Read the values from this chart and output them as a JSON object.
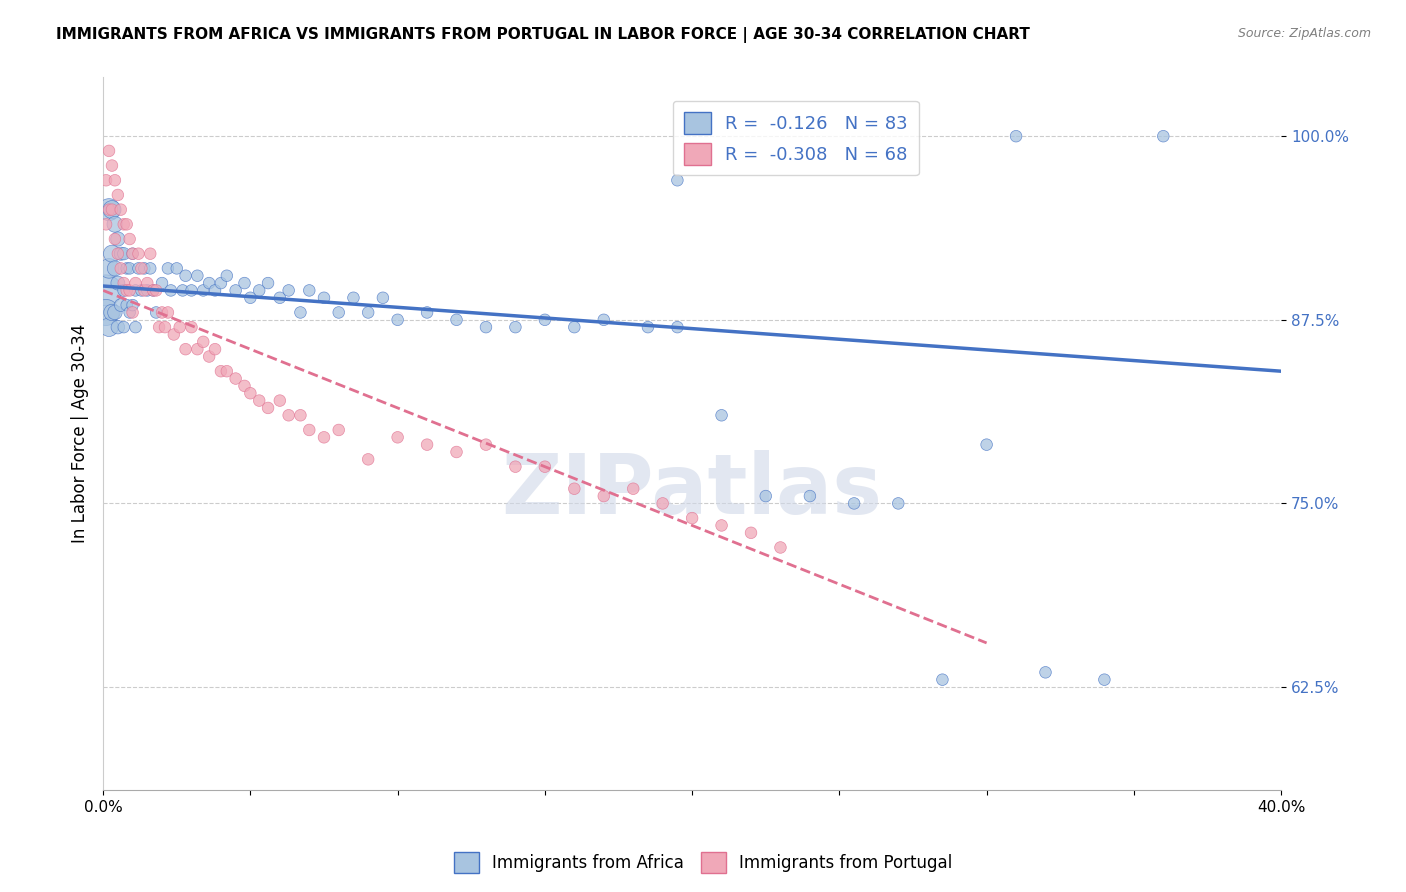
{
  "title": "IMMIGRANTS FROM AFRICA VS IMMIGRANTS FROM PORTUGAL IN LABOR FORCE | AGE 30-34 CORRELATION CHART",
  "source": "Source: ZipAtlas.com",
  "ylabel": "In Labor Force | Age 30-34",
  "xlim": [
    0.0,
    0.4
  ],
  "ylim": [
    0.555,
    1.04
  ],
  "yticks": [
    0.625,
    0.75,
    0.875,
    1.0
  ],
  "ytick_labels": [
    "62.5%",
    "75.0%",
    "87.5%",
    "100.0%"
  ],
  "xticks": [
    0.0,
    0.05,
    0.1,
    0.15,
    0.2,
    0.25,
    0.3,
    0.35,
    0.4
  ],
  "xtick_labels": [
    "0.0%",
    "",
    "",
    "",
    "",
    "",
    "",
    "",
    "40.0%"
  ],
  "legend_r_africa": "-0.126",
  "legend_n_africa": "83",
  "legend_r_portugal": "-0.308",
  "legend_n_portugal": "68",
  "color_africa": "#a8c4e0",
  "color_portugal": "#f0a8b8",
  "trend_africa_color": "#4472c4",
  "trend_portugal_color": "#e07090",
  "watermark": "ZIPatlas",
  "trend_africa_x0": 0.0,
  "trend_africa_y0": 0.898,
  "trend_africa_x1": 0.4,
  "trend_africa_y1": 0.84,
  "trend_portugal_x0": 0.0,
  "trend_portugal_y0": 0.895,
  "trend_portugal_x1": 0.3,
  "trend_portugal_y1": 0.655,
  "africa_x": [
    0.001,
    0.001,
    0.002,
    0.002,
    0.002,
    0.003,
    0.003,
    0.003,
    0.004,
    0.004,
    0.004,
    0.005,
    0.005,
    0.005,
    0.006,
    0.006,
    0.007,
    0.007,
    0.007,
    0.008,
    0.008,
    0.009,
    0.009,
    0.01,
    0.01,
    0.011,
    0.011,
    0.012,
    0.013,
    0.014,
    0.015,
    0.016,
    0.017,
    0.018,
    0.02,
    0.022,
    0.023,
    0.025,
    0.027,
    0.028,
    0.03,
    0.032,
    0.034,
    0.036,
    0.038,
    0.04,
    0.042,
    0.045,
    0.048,
    0.05,
    0.053,
    0.056,
    0.06,
    0.063,
    0.067,
    0.07,
    0.075,
    0.08,
    0.085,
    0.09,
    0.095,
    0.1,
    0.11,
    0.12,
    0.13,
    0.14,
    0.15,
    0.16,
    0.17,
    0.185,
    0.195,
    0.21,
    0.225,
    0.24,
    0.255,
    0.27,
    0.285,
    0.3,
    0.32,
    0.34,
    0.36,
    0.195,
    0.31
  ],
  "africa_y": [
    0.895,
    0.88,
    0.95,
    0.91,
    0.87,
    0.95,
    0.92,
    0.88,
    0.94,
    0.91,
    0.88,
    0.93,
    0.9,
    0.87,
    0.92,
    0.885,
    0.92,
    0.895,
    0.87,
    0.91,
    0.885,
    0.91,
    0.88,
    0.92,
    0.885,
    0.895,
    0.87,
    0.91,
    0.895,
    0.91,
    0.895,
    0.91,
    0.895,
    0.88,
    0.9,
    0.91,
    0.895,
    0.91,
    0.895,
    0.905,
    0.895,
    0.905,
    0.895,
    0.9,
    0.895,
    0.9,
    0.905,
    0.895,
    0.9,
    0.89,
    0.895,
    0.9,
    0.89,
    0.895,
    0.88,
    0.895,
    0.89,
    0.88,
    0.89,
    0.88,
    0.89,
    0.875,
    0.88,
    0.875,
    0.87,
    0.87,
    0.875,
    0.87,
    0.875,
    0.87,
    0.87,
    0.81,
    0.755,
    0.755,
    0.75,
    0.75,
    0.63,
    0.79,
    0.635,
    0.63,
    1.0,
    0.97,
    1.0
  ],
  "africa_sizes": [
    500,
    350,
    250,
    200,
    180,
    170,
    150,
    140,
    130,
    120,
    110,
    105,
    100,
    95,
    90,
    85,
    80,
    75,
    70,
    70,
    70,
    70,
    70,
    70,
    70,
    70,
    70,
    70,
    70,
    70,
    70,
    70,
    70,
    70,
    70,
    70,
    70,
    70,
    70,
    70,
    70,
    70,
    70,
    70,
    70,
    70,
    70,
    70,
    70,
    70,
    70,
    70,
    70,
    70,
    70,
    70,
    70,
    70,
    70,
    70,
    70,
    70,
    70,
    70,
    70,
    70,
    70,
    70,
    70,
    70,
    70,
    70,
    70,
    70,
    70,
    70,
    70,
    70,
    70,
    70,
    70,
    70,
    70
  ],
  "portugal_x": [
    0.001,
    0.001,
    0.002,
    0.002,
    0.003,
    0.003,
    0.004,
    0.004,
    0.005,
    0.005,
    0.006,
    0.006,
    0.007,
    0.007,
    0.008,
    0.008,
    0.009,
    0.009,
    0.01,
    0.01,
    0.011,
    0.012,
    0.013,
    0.014,
    0.015,
    0.016,
    0.017,
    0.018,
    0.019,
    0.02,
    0.021,
    0.022,
    0.024,
    0.026,
    0.028,
    0.03,
    0.032,
    0.034,
    0.036,
    0.038,
    0.04,
    0.042,
    0.045,
    0.048,
    0.05,
    0.053,
    0.056,
    0.06,
    0.063,
    0.067,
    0.07,
    0.075,
    0.08,
    0.09,
    0.1,
    0.11,
    0.12,
    0.13,
    0.14,
    0.15,
    0.16,
    0.17,
    0.18,
    0.19,
    0.2,
    0.21,
    0.22,
    0.23
  ],
  "portugal_y": [
    0.97,
    0.94,
    0.99,
    0.95,
    0.98,
    0.95,
    0.97,
    0.93,
    0.96,
    0.92,
    0.95,
    0.91,
    0.94,
    0.9,
    0.94,
    0.895,
    0.93,
    0.895,
    0.92,
    0.88,
    0.9,
    0.92,
    0.91,
    0.895,
    0.9,
    0.92,
    0.895,
    0.895,
    0.87,
    0.88,
    0.87,
    0.88,
    0.865,
    0.87,
    0.855,
    0.87,
    0.855,
    0.86,
    0.85,
    0.855,
    0.84,
    0.84,
    0.835,
    0.83,
    0.825,
    0.82,
    0.815,
    0.82,
    0.81,
    0.81,
    0.8,
    0.795,
    0.8,
    0.78,
    0.795,
    0.79,
    0.785,
    0.79,
    0.775,
    0.775,
    0.76,
    0.755,
    0.76,
    0.75,
    0.74,
    0.735,
    0.73,
    0.72
  ],
  "portugal_sizes": [
    70,
    70,
    70,
    70,
    70,
    70,
    70,
    70,
    70,
    70,
    70,
    70,
    70,
    70,
    70,
    70,
    70,
    70,
    70,
    70,
    70,
    70,
    70,
    70,
    70,
    70,
    70,
    70,
    70,
    70,
    70,
    70,
    70,
    70,
    70,
    70,
    70,
    70,
    70,
    70,
    70,
    70,
    70,
    70,
    70,
    70,
    70,
    70,
    70,
    70,
    70,
    70,
    70,
    70,
    70,
    70,
    70,
    70,
    70,
    70,
    70,
    70,
    70,
    70,
    70,
    70,
    70,
    70
  ]
}
